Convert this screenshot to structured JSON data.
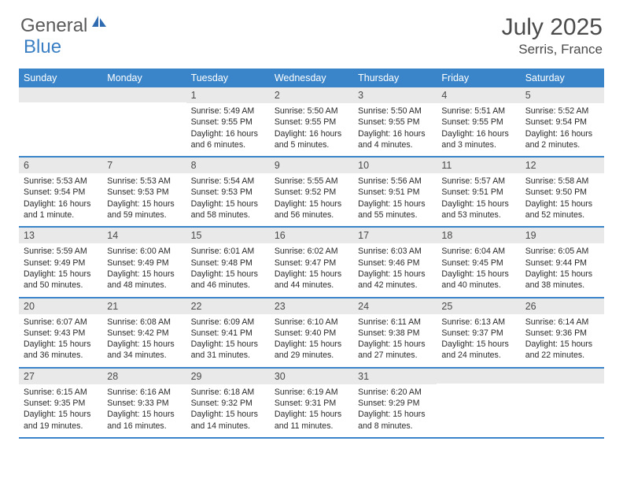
{
  "brand": {
    "part1": "General",
    "part2": "Blue"
  },
  "title": "July 2025",
  "location": "Serris, France",
  "colors": {
    "headerBlue": "#3a85c9",
    "dayNumBg": "#e9e9e9",
    "textDark": "#4a4a4a",
    "logoBlue": "#3a7fc4",
    "logoGray": "#5a5a5a",
    "body": "#2a2a2a"
  },
  "dayNames": [
    "Sunday",
    "Monday",
    "Tuesday",
    "Wednesday",
    "Thursday",
    "Friday",
    "Saturday"
  ],
  "weeks": [
    [
      {
        "num": "",
        "sunrise": "",
        "sunset": "",
        "daylight": ""
      },
      {
        "num": "",
        "sunrise": "",
        "sunset": "",
        "daylight": ""
      },
      {
        "num": "1",
        "sunrise": "Sunrise: 5:49 AM",
        "sunset": "Sunset: 9:55 PM",
        "daylight": "Daylight: 16 hours and 6 minutes."
      },
      {
        "num": "2",
        "sunrise": "Sunrise: 5:50 AM",
        "sunset": "Sunset: 9:55 PM",
        "daylight": "Daylight: 16 hours and 5 minutes."
      },
      {
        "num": "3",
        "sunrise": "Sunrise: 5:50 AM",
        "sunset": "Sunset: 9:55 PM",
        "daylight": "Daylight: 16 hours and 4 minutes."
      },
      {
        "num": "4",
        "sunrise": "Sunrise: 5:51 AM",
        "sunset": "Sunset: 9:55 PM",
        "daylight": "Daylight: 16 hours and 3 minutes."
      },
      {
        "num": "5",
        "sunrise": "Sunrise: 5:52 AM",
        "sunset": "Sunset: 9:54 PM",
        "daylight": "Daylight: 16 hours and 2 minutes."
      }
    ],
    [
      {
        "num": "6",
        "sunrise": "Sunrise: 5:53 AM",
        "sunset": "Sunset: 9:54 PM",
        "daylight": "Daylight: 16 hours and 1 minute."
      },
      {
        "num": "7",
        "sunrise": "Sunrise: 5:53 AM",
        "sunset": "Sunset: 9:53 PM",
        "daylight": "Daylight: 15 hours and 59 minutes."
      },
      {
        "num": "8",
        "sunrise": "Sunrise: 5:54 AM",
        "sunset": "Sunset: 9:53 PM",
        "daylight": "Daylight: 15 hours and 58 minutes."
      },
      {
        "num": "9",
        "sunrise": "Sunrise: 5:55 AM",
        "sunset": "Sunset: 9:52 PM",
        "daylight": "Daylight: 15 hours and 56 minutes."
      },
      {
        "num": "10",
        "sunrise": "Sunrise: 5:56 AM",
        "sunset": "Sunset: 9:51 PM",
        "daylight": "Daylight: 15 hours and 55 minutes."
      },
      {
        "num": "11",
        "sunrise": "Sunrise: 5:57 AM",
        "sunset": "Sunset: 9:51 PM",
        "daylight": "Daylight: 15 hours and 53 minutes."
      },
      {
        "num": "12",
        "sunrise": "Sunrise: 5:58 AM",
        "sunset": "Sunset: 9:50 PM",
        "daylight": "Daylight: 15 hours and 52 minutes."
      }
    ],
    [
      {
        "num": "13",
        "sunrise": "Sunrise: 5:59 AM",
        "sunset": "Sunset: 9:49 PM",
        "daylight": "Daylight: 15 hours and 50 minutes."
      },
      {
        "num": "14",
        "sunrise": "Sunrise: 6:00 AM",
        "sunset": "Sunset: 9:49 PM",
        "daylight": "Daylight: 15 hours and 48 minutes."
      },
      {
        "num": "15",
        "sunrise": "Sunrise: 6:01 AM",
        "sunset": "Sunset: 9:48 PM",
        "daylight": "Daylight: 15 hours and 46 minutes."
      },
      {
        "num": "16",
        "sunrise": "Sunrise: 6:02 AM",
        "sunset": "Sunset: 9:47 PM",
        "daylight": "Daylight: 15 hours and 44 minutes."
      },
      {
        "num": "17",
        "sunrise": "Sunrise: 6:03 AM",
        "sunset": "Sunset: 9:46 PM",
        "daylight": "Daylight: 15 hours and 42 minutes."
      },
      {
        "num": "18",
        "sunrise": "Sunrise: 6:04 AM",
        "sunset": "Sunset: 9:45 PM",
        "daylight": "Daylight: 15 hours and 40 minutes."
      },
      {
        "num": "19",
        "sunrise": "Sunrise: 6:05 AM",
        "sunset": "Sunset: 9:44 PM",
        "daylight": "Daylight: 15 hours and 38 minutes."
      }
    ],
    [
      {
        "num": "20",
        "sunrise": "Sunrise: 6:07 AM",
        "sunset": "Sunset: 9:43 PM",
        "daylight": "Daylight: 15 hours and 36 minutes."
      },
      {
        "num": "21",
        "sunrise": "Sunrise: 6:08 AM",
        "sunset": "Sunset: 9:42 PM",
        "daylight": "Daylight: 15 hours and 34 minutes."
      },
      {
        "num": "22",
        "sunrise": "Sunrise: 6:09 AM",
        "sunset": "Sunset: 9:41 PM",
        "daylight": "Daylight: 15 hours and 31 minutes."
      },
      {
        "num": "23",
        "sunrise": "Sunrise: 6:10 AM",
        "sunset": "Sunset: 9:40 PM",
        "daylight": "Daylight: 15 hours and 29 minutes."
      },
      {
        "num": "24",
        "sunrise": "Sunrise: 6:11 AM",
        "sunset": "Sunset: 9:38 PM",
        "daylight": "Daylight: 15 hours and 27 minutes."
      },
      {
        "num": "25",
        "sunrise": "Sunrise: 6:13 AM",
        "sunset": "Sunset: 9:37 PM",
        "daylight": "Daylight: 15 hours and 24 minutes."
      },
      {
        "num": "26",
        "sunrise": "Sunrise: 6:14 AM",
        "sunset": "Sunset: 9:36 PM",
        "daylight": "Daylight: 15 hours and 22 minutes."
      }
    ],
    [
      {
        "num": "27",
        "sunrise": "Sunrise: 6:15 AM",
        "sunset": "Sunset: 9:35 PM",
        "daylight": "Daylight: 15 hours and 19 minutes."
      },
      {
        "num": "28",
        "sunrise": "Sunrise: 6:16 AM",
        "sunset": "Sunset: 9:33 PM",
        "daylight": "Daylight: 15 hours and 16 minutes."
      },
      {
        "num": "29",
        "sunrise": "Sunrise: 6:18 AM",
        "sunset": "Sunset: 9:32 PM",
        "daylight": "Daylight: 15 hours and 14 minutes."
      },
      {
        "num": "30",
        "sunrise": "Sunrise: 6:19 AM",
        "sunset": "Sunset: 9:31 PM",
        "daylight": "Daylight: 15 hours and 11 minutes."
      },
      {
        "num": "31",
        "sunrise": "Sunrise: 6:20 AM",
        "sunset": "Sunset: 9:29 PM",
        "daylight": "Daylight: 15 hours and 8 minutes."
      },
      {
        "num": "",
        "sunrise": "",
        "sunset": "",
        "daylight": ""
      },
      {
        "num": "",
        "sunrise": "",
        "sunset": "",
        "daylight": ""
      }
    ]
  ]
}
